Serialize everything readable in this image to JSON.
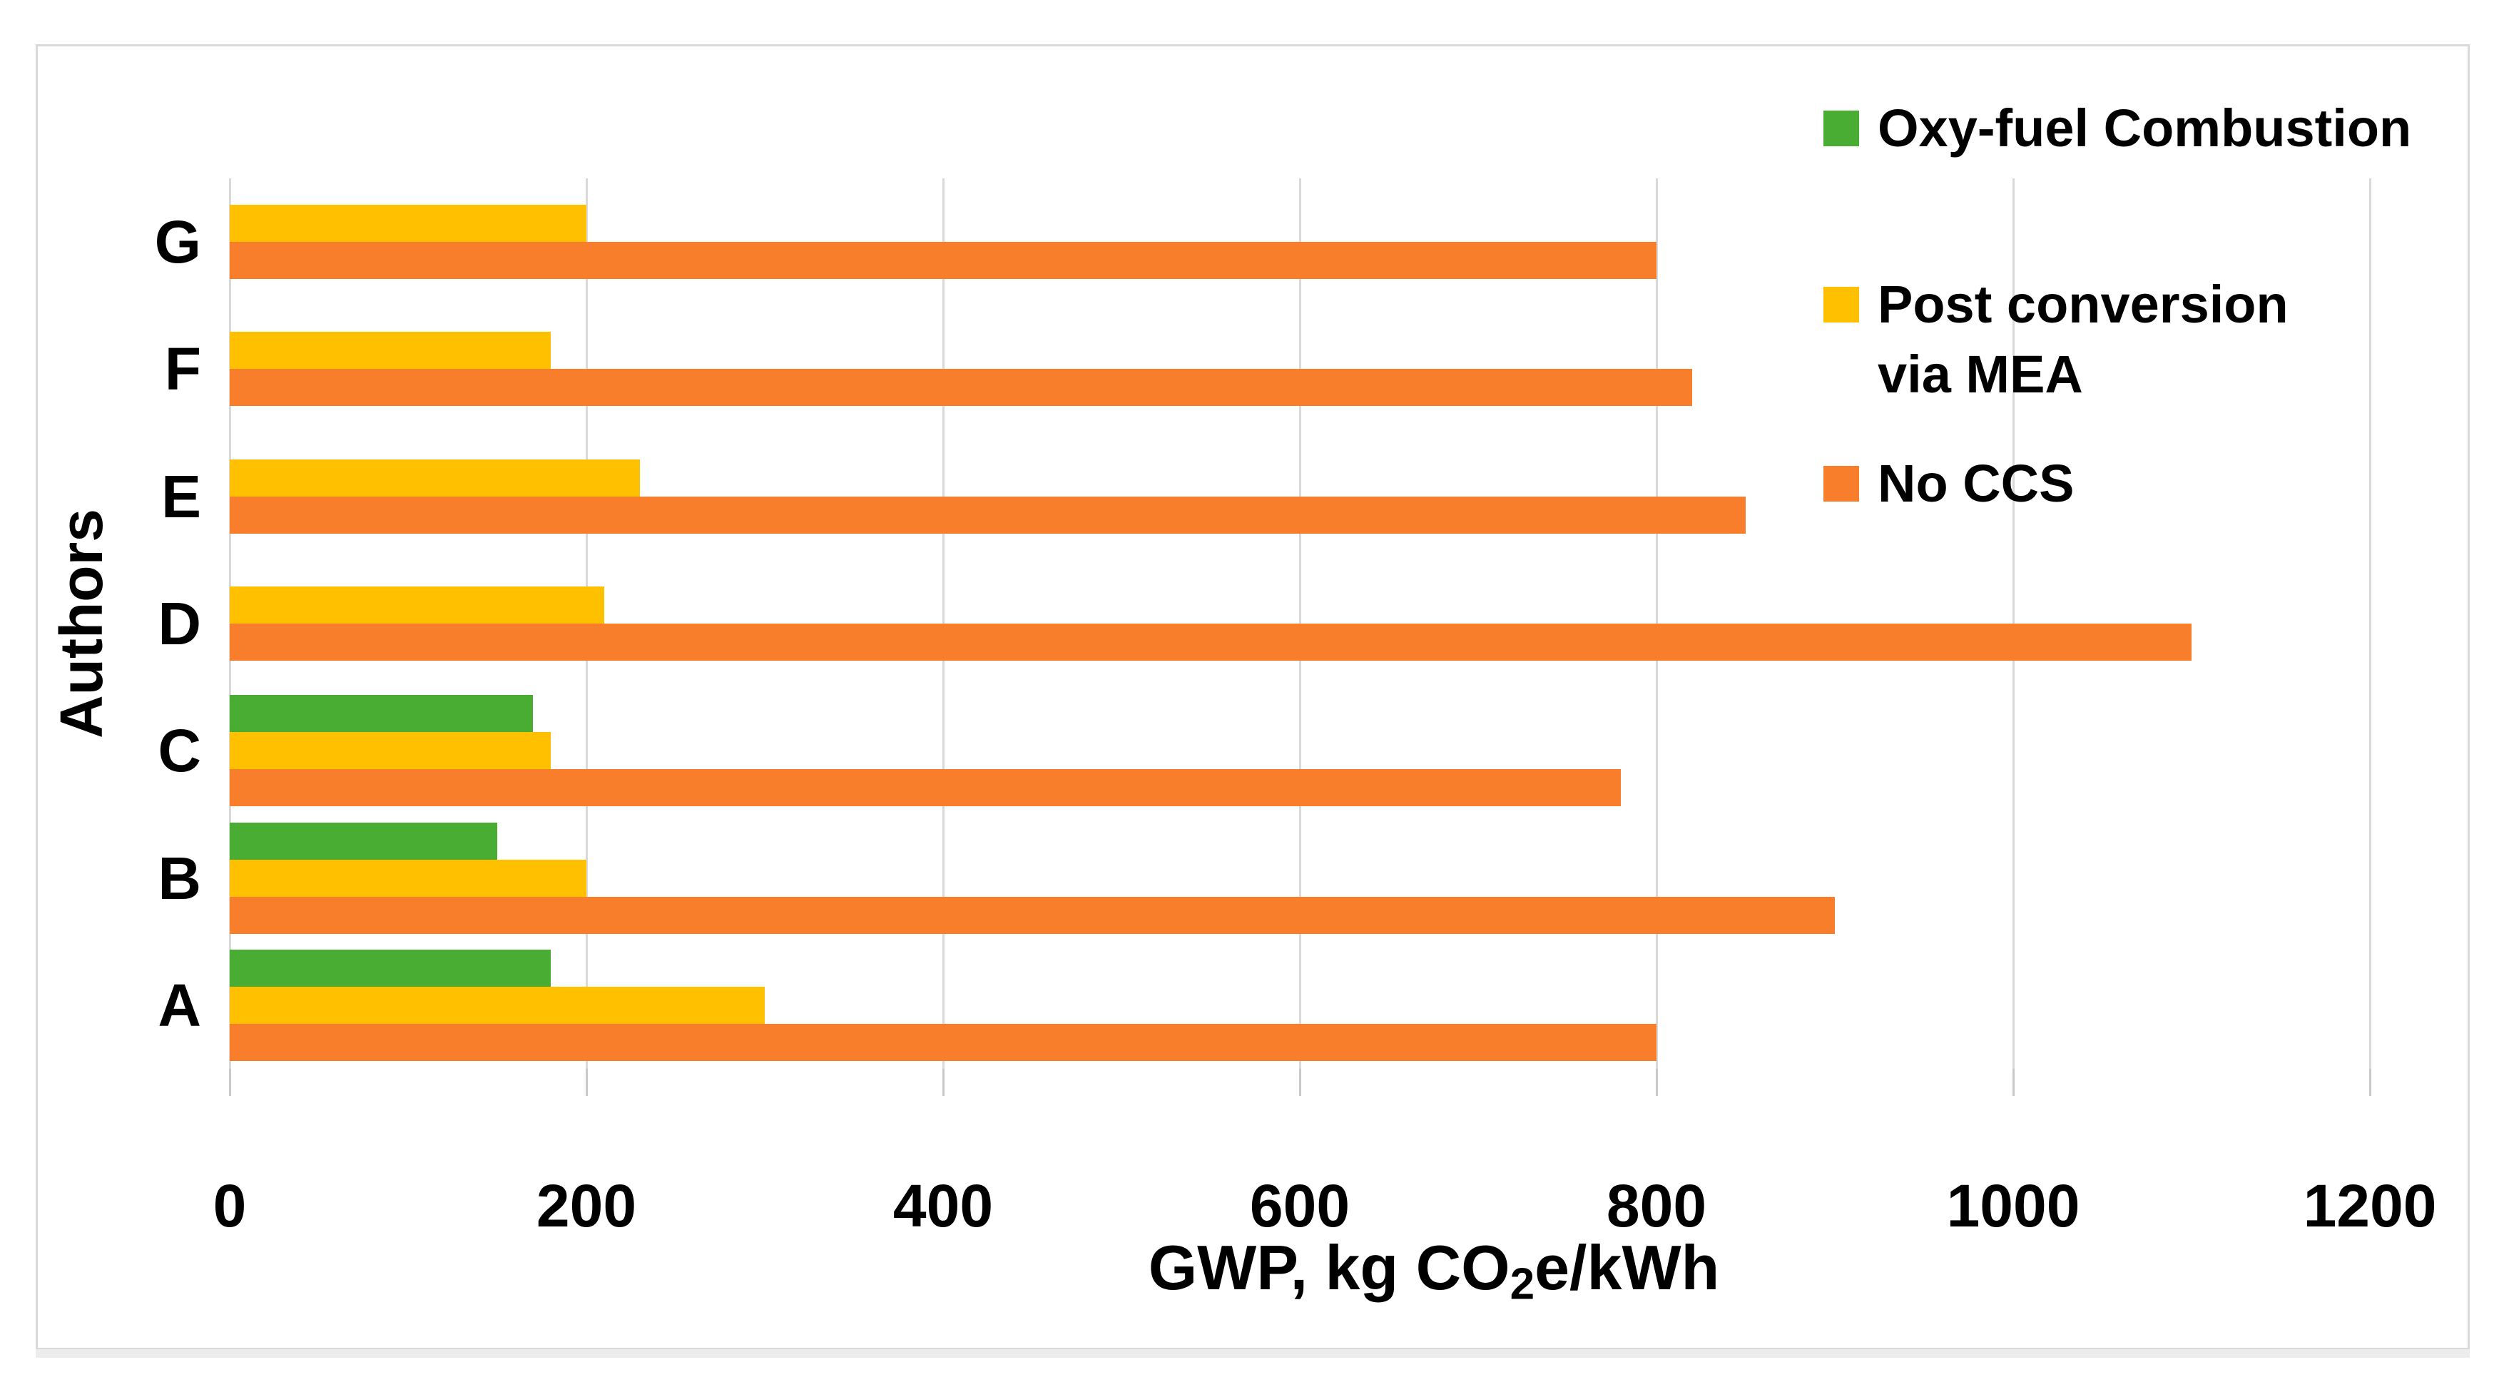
{
  "chart_data": {
    "type": "bar",
    "orientation": "horizontal",
    "title": "",
    "ylabel": "Authors",
    "xlabel": "GWP, kg CO2e/kWh",
    "xlabel_parts": {
      "pre": "GWP, kg CO",
      "sub": "2",
      "post": "e/kWh"
    },
    "categories": [
      "A",
      "B",
      "C",
      "D",
      "E",
      "F",
      "G"
    ],
    "x_ticks": [
      "0",
      "200",
      "400",
      "600",
      "800",
      "1000",
      "1200"
    ],
    "xlim": [
      0,
      1200
    ],
    "grid": true,
    "legend_position": "top-right",
    "series": [
      {
        "name": "Oxy-fuel Combustion",
        "key": "oxy-fuel-combustion",
        "color": "#4AAD33",
        "values": [
          180,
          150,
          170,
          null,
          null,
          null,
          null
        ]
      },
      {
        "name": "Post conversion via MEA",
        "key": "post-conversion-via-mea",
        "color": "#FFC000",
        "values": [
          300,
          200,
          180,
          210,
          230,
          180,
          200
        ]
      },
      {
        "name": "No CCS",
        "key": "no-ccs",
        "color": "#F87E2B",
        "values": [
          800,
          900,
          780,
          1100,
          850,
          820,
          800
        ]
      }
    ]
  },
  "legend": {
    "items": [
      {
        "label": "Oxy-fuel Combustion",
        "color": "#4AAD33"
      },
      {
        "label_line1": "Post conversion",
        "label_line2": "via MEA",
        "color": "#FFC000"
      },
      {
        "label": "No CCS",
        "color": "#F87E2B"
      }
    ]
  },
  "colors": {
    "grid": "#D9D9D9",
    "tick": "#C9C9C9",
    "border": "#D9D9D9",
    "text": "#000000",
    "background": "#FFFFFF"
  }
}
